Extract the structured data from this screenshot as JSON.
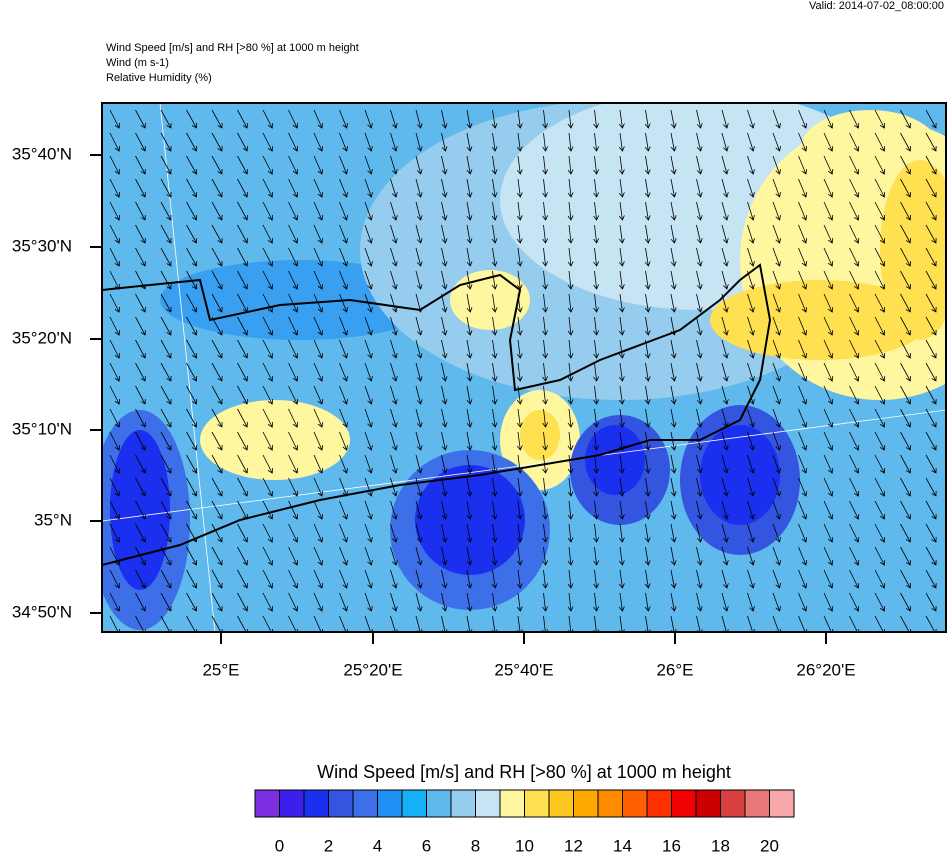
{
  "valid": "Valid: 2014-07-02_08:00:00",
  "header": {
    "title": "Wind Speed [m/s] and RH [>80 %] at 1000 m height",
    "wind": "Wind   (m s-1)",
    "rh": "Relative Humidity   (%)"
  },
  "map": {
    "lat_labels": [
      "35°40'N",
      "35°30'N",
      "35°20'N",
      "35°10'N",
      "35°N",
      "34°50'N"
    ],
    "lon_labels": [
      "25°E",
      "25°20'E",
      "25°40'E",
      "26°E",
      "26°20'E"
    ]
  },
  "colorbar": {
    "title": "Wind Speed [m/s] and RH [>80 %] at 1000 m height",
    "colors": [
      "#7b2fe0",
      "#3c1fea",
      "#1a30ee",
      "#3355e0",
      "#3d70e8",
      "#2090f5",
      "#15b0f5",
      "#5fb9ec",
      "#96ccee",
      "#c6e4f4",
      "#fff6a0",
      "#ffe050",
      "#ffc820",
      "#ffa800",
      "#ff8c00",
      "#ff6000",
      "#ff3000",
      "#f00000",
      "#cc0000",
      "#d84040",
      "#e87878",
      "#f8a8a8"
    ],
    "labels": [
      0,
      2,
      4,
      6,
      8,
      10,
      12,
      14,
      16,
      18,
      20
    ]
  }
}
